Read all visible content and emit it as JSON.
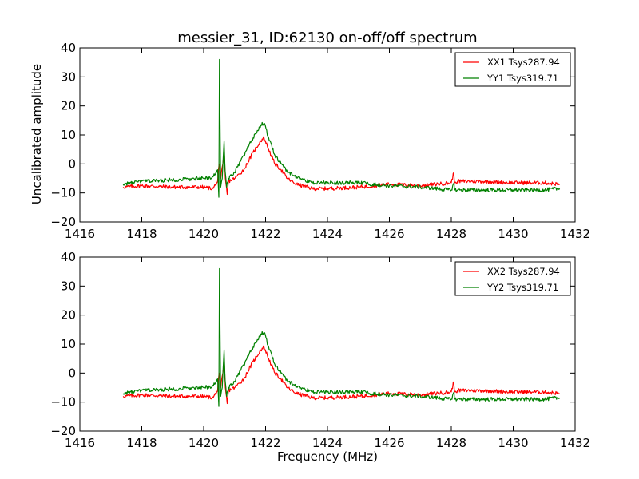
{
  "chart_data": {
    "type": "line",
    "title": "messier_31, ID:62130 on-off/off spectrum",
    "xlabel": "Frequency (MHz)",
    "ylabel": "Uncalibrated amplitude",
    "colors": {
      "XX": "#ff0000",
      "YY": "#008000"
    },
    "panels": [
      {
        "xlim": [
          1416,
          1432
        ],
        "ylim": [
          -20,
          40
        ],
        "x_ticks": [
          "1416",
          "1418",
          "1420",
          "1422",
          "1424",
          "1426",
          "1428",
          "1430",
          "1432"
        ],
        "y_ticks": [
          "−20",
          "−10",
          "0",
          "10",
          "20",
          "30",
          "40"
        ],
        "legend_position": "top-right",
        "series": [
          {
            "name": "XX1 Tsys287.94",
            "color": "#ff0000",
            "x": [
              1417.4,
              1418.0,
              1419.0,
              1420.0,
              1420.3,
              1420.45,
              1420.5,
              1420.55,
              1420.62,
              1420.67,
              1420.7,
              1420.76,
              1420.8,
              1421.0,
              1421.3,
              1421.6,
              1421.85,
              1421.95,
              1422.1,
              1422.3,
              1422.5,
              1422.7,
              1423.0,
              1423.5,
              1424.0,
              1425.0,
              1426.0,
              1427.0,
              1428.0,
              1428.08,
              1428.1,
              1428.12,
              1428.2,
              1429.0,
              1430.0,
              1431.0,
              1431.5
            ],
            "y": [
              -8,
              -7.5,
              -8,
              -8,
              -8.5,
              -6,
              0,
              -5,
              0,
              3,
              -5,
              -10.5,
              -6,
              -5,
              -2,
              4,
              8,
              9,
              5,
              0,
              -2,
              -5,
              -7,
              -8.5,
              -8.5,
              -8,
              -7,
              -7.5,
              -6.5,
              -3,
              -6,
              -6.5,
              -6,
              -6,
              -6.5,
              -6.5,
              -7
            ]
          },
          {
            "name": "YY1 Tsys319.71",
            "color": "#008000",
            "x": [
              1417.4,
              1418.0,
              1419.0,
              1420.0,
              1420.3,
              1420.45,
              1420.49,
              1420.51,
              1420.55,
              1420.6,
              1420.66,
              1420.69,
              1420.74,
              1420.8,
              1421.0,
              1421.3,
              1421.6,
              1421.85,
              1421.95,
              1422.1,
              1422.3,
              1422.5,
              1422.7,
              1423.0,
              1423.5,
              1424.0,
              1425.0,
              1426.0,
              1427.0,
              1428.0,
              1428.09,
              1428.1,
              1428.12,
              1428.2,
              1429.0,
              1430.0,
              1431.0,
              1431.5
            ],
            "y": [
              -7,
              -6,
              -5.5,
              -5,
              -4.5,
              -2,
              -11.5,
              36,
              -8,
              -5,
              8,
              -2,
              -8,
              -5,
              -3,
              3,
              9,
              13.5,
              14,
              9,
              3,
              0,
              -2.5,
              -4.5,
              -6.5,
              -6.5,
              -6.5,
              -7.5,
              -8,
              -9,
              -6.5,
              -8.5,
              -9,
              -9,
              -9,
              -9,
              -9,
              -8.5
            ]
          }
        ]
      },
      {
        "xlim": [
          1416,
          1432
        ],
        "ylim": [
          -20,
          40
        ],
        "x_ticks": [
          "1416",
          "1418",
          "1420",
          "1422",
          "1424",
          "1426",
          "1428",
          "1430",
          "1432"
        ],
        "y_ticks": [
          "−20",
          "−10",
          "0",
          "10",
          "20",
          "30",
          "40"
        ],
        "legend_position": "top-right",
        "series": [
          {
            "name": "XX2 Tsys287.94",
            "color": "#ff0000",
            "x": [
              1417.4,
              1418.0,
              1419.0,
              1420.0,
              1420.3,
              1420.45,
              1420.5,
              1420.55,
              1420.62,
              1420.67,
              1420.7,
              1420.76,
              1420.8,
              1421.0,
              1421.3,
              1421.6,
              1421.85,
              1421.95,
              1422.1,
              1422.3,
              1422.5,
              1422.7,
              1423.0,
              1423.5,
              1424.0,
              1425.0,
              1426.0,
              1427.0,
              1428.0,
              1428.08,
              1428.1,
              1428.12,
              1428.2,
              1429.0,
              1430.0,
              1431.0,
              1431.5
            ],
            "y": [
              -8,
              -7.5,
              -8,
              -8,
              -8.5,
              -6,
              0,
              -5,
              0,
              3,
              -5,
              -10.5,
              -6,
              -5,
              -2,
              4,
              8,
              9,
              5,
              0,
              -2,
              -5,
              -7,
              -8.5,
              -8.5,
              -8,
              -7,
              -7.5,
              -6.5,
              -3,
              -6,
              -6.5,
              -6,
              -6,
              -6.5,
              -6.5,
              -7
            ]
          },
          {
            "name": "YY2 Tsys319.71",
            "color": "#008000",
            "x": [
              1417.4,
              1418.0,
              1419.0,
              1420.0,
              1420.3,
              1420.45,
              1420.49,
              1420.51,
              1420.55,
              1420.6,
              1420.66,
              1420.69,
              1420.74,
              1420.8,
              1421.0,
              1421.3,
              1421.6,
              1421.85,
              1421.95,
              1422.1,
              1422.3,
              1422.5,
              1422.7,
              1423.0,
              1423.5,
              1424.0,
              1425.0,
              1426.0,
              1427.0,
              1428.0,
              1428.09,
              1428.1,
              1428.12,
              1428.2,
              1429.0,
              1430.0,
              1431.0,
              1431.5
            ],
            "y": [
              -7,
              -6,
              -5.5,
              -5,
              -4.5,
              -2,
              -11.5,
              36,
              -8,
              -5,
              8,
              -2,
              -8,
              -5,
              -3,
              3,
              9,
              13.5,
              14,
              9,
              3,
              0,
              -2.5,
              -4.5,
              -6.5,
              -6.5,
              -6.5,
              -7.5,
              -8,
              -9,
              -6.5,
              -8.5,
              -9,
              -9,
              -9,
              -9,
              -9,
              -8.5
            ]
          }
        ]
      }
    ]
  }
}
